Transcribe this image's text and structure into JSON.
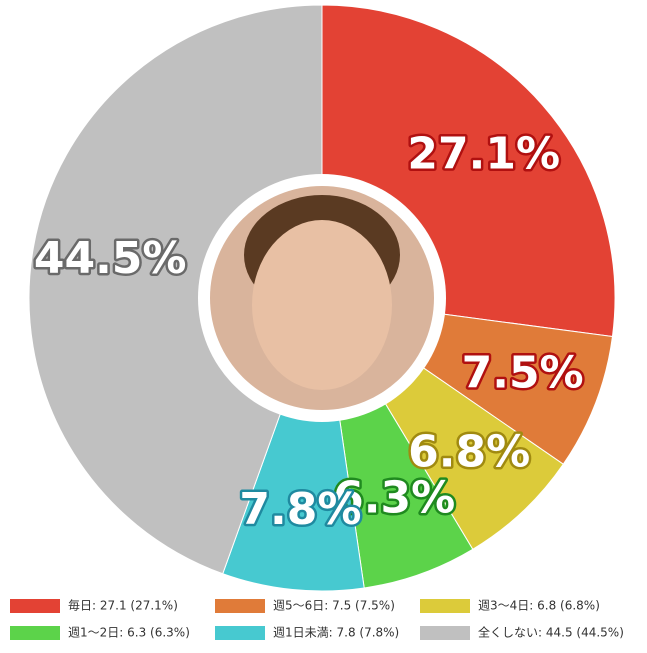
{
  "chart_data": {
    "type": "donut",
    "categories": [
      "毎日",
      "週5〜6日",
      "週3〜4日",
      "週1〜2日",
      "週1日未満",
      "全くしない"
    ],
    "values": [
      27.1,
      7.5,
      6.8,
      6.3,
      7.8,
      44.5
    ],
    "value_labels": [
      "27.1%",
      "7.5%",
      "6.8%",
      "6.3%",
      "7.8%",
      "44.5%"
    ],
    "legend_labels": [
      "毎日: 27.1 (27.1%)",
      "週5〜6日: 7.5 (7.5%)",
      "週3〜4日: 6.8 (6.8%)",
      "週1〜2日: 6.3 (6.3%)",
      "週1日未満: 7.8 (7.8%)",
      "全くしない: 44.5 (44.5%)"
    ],
    "colors": [
      "#e34234",
      "#e07b39",
      "#dccb3a",
      "#5cd34a",
      "#47c9d0",
      "#c0c0c0"
    ],
    "label_colors": [
      "#b01010",
      "#b01010",
      "#a08a10",
      "#1f8a1f",
      "#1f8aa0",
      "#6a6a6a"
    ],
    "legend": "bottom"
  }
}
